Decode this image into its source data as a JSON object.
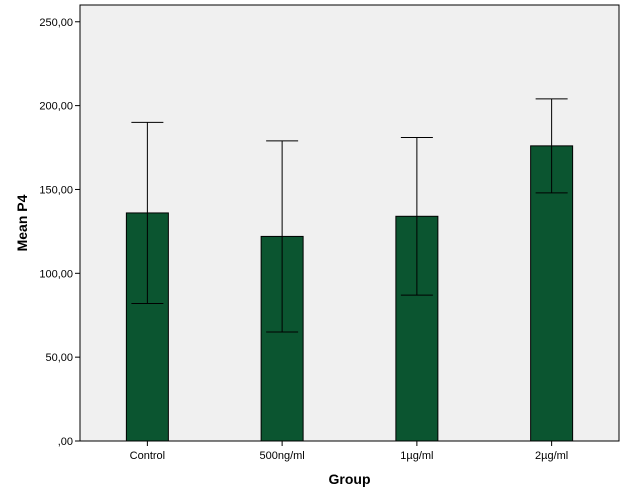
{
  "chart_data": {
    "type": "bar",
    "xlabel": "Group",
    "ylabel": "Mean P4",
    "categories": [
      "Control",
      "500ng/ml",
      "1µg/ml",
      "2µg/ml"
    ],
    "values": [
      136,
      122,
      134,
      176
    ],
    "error_low": [
      82,
      65,
      87,
      148
    ],
    "error_high": [
      190,
      179,
      181,
      204
    ],
    "ylim": [
      0,
      260
    ],
    "yticks": [
      0,
      50,
      100,
      150,
      200,
      250
    ],
    "ytick_labels": [
      ",00",
      "50,00",
      "100,00",
      "150,00",
      "200,00",
      "250,00"
    ],
    "bar_color": "#0b5530",
    "plot_background": "#f0f0f0",
    "grid": false,
    "legend": "none"
  }
}
